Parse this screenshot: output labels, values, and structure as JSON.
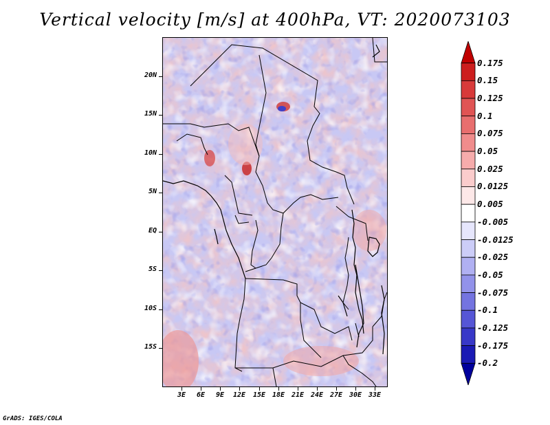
{
  "title": "Vertical velocity [m/s] at 400hPa, VT: 2020073103",
  "credit": "GrADS: IGES/COLA",
  "lat_labels": [
    "20N",
    "15N",
    "10N",
    "5N",
    "EQ",
    "5S",
    "10S",
    "15S"
  ],
  "lat_values": [
    20,
    15,
    10,
    5,
    0,
    -5,
    -10,
    -15
  ],
  "lon_labels": [
    "3E",
    "6E",
    "9E",
    "12E",
    "15E",
    "18E",
    "21E",
    "24E",
    "27E",
    "30E",
    "33E"
  ],
  "lon_values": [
    3,
    6,
    9,
    12,
    15,
    18,
    21,
    24,
    27,
    30,
    33
  ],
  "domain": {
    "lon_min": 0,
    "lon_max": 35,
    "lat_min": -20,
    "lat_max": 25
  },
  "colorbar": {
    "labels": [
      "0.175",
      "0.15",
      "0.125",
      "0.1",
      "0.075",
      "0.05",
      "0.025",
      "0.0125",
      "0.005",
      "-0.005",
      "-0.0125",
      "-0.025",
      "-0.05",
      "-0.075",
      "-0.1",
      "-0.125",
      "-0.175",
      "-0.2"
    ],
    "colors": [
      "#c00000",
      "#cc1e1e",
      "#d83a3a",
      "#e05454",
      "#e86e6e",
      "#f08c8c",
      "#f6acac",
      "#fbcccc",
      "#fde8e8",
      "#ffffff",
      "#e6e6fc",
      "#cccdf8",
      "#b0b0f2",
      "#9292ea",
      "#7474e0",
      "#5656d6",
      "#3838c8",
      "#1a1ab4",
      "#00009c"
    ]
  }
}
